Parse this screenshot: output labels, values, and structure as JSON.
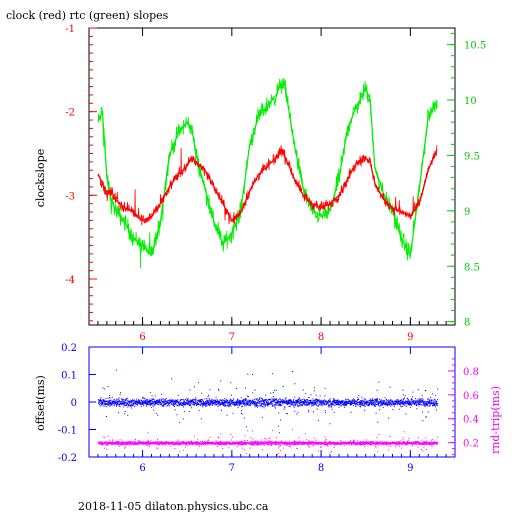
{
  "chart_data": [
    {
      "type": "line",
      "title": "clock (red) rtc (green) slopes",
      "ylabel": "clockslope",
      "xlim": [
        5.4,
        9.5
      ],
      "ylim": [
        -4.55,
        -1.0
      ],
      "y2lim": [
        7.97,
        10.65
      ],
      "x_ticks": [
        "6",
        "7",
        "8",
        "9"
      ],
      "y_ticks": [
        "-1",
        "-2",
        "-3",
        "-4"
      ],
      "y2_ticks": [
        "10.5",
        "10",
        "9.5",
        "9",
        "8.5",
        "8"
      ],
      "colors": {
        "frame": "#000000",
        "clock": "#ff0000",
        "rtc": "#00ee00"
      },
      "series": [
        {
          "name": "clock",
          "axis": "left",
          "x": [
            5.5,
            5.55,
            5.6,
            5.65,
            5.7,
            5.8,
            5.9,
            6.0,
            6.1,
            6.2,
            6.3,
            6.4,
            6.5,
            6.55,
            6.6,
            6.7,
            6.8,
            6.9,
            7.0,
            7.1,
            7.2,
            7.3,
            7.4,
            7.5,
            7.55,
            7.6,
            7.7,
            7.8,
            7.9,
            8.0,
            8.1,
            8.2,
            8.3,
            8.4,
            8.5,
            8.55,
            8.6,
            8.7,
            8.8,
            8.9,
            9.0,
            9.1,
            9.2,
            9.3
          ],
          "values": [
            -2.75,
            -2.85,
            -3.0,
            -2.95,
            -3.05,
            -3.15,
            -3.2,
            -3.3,
            -3.25,
            -3.1,
            -2.9,
            -2.75,
            -2.65,
            -2.55,
            -2.6,
            -2.7,
            -2.9,
            -3.1,
            -3.3,
            -3.2,
            -2.95,
            -2.75,
            -2.65,
            -2.55,
            -2.45,
            -2.55,
            -2.8,
            -3.0,
            -3.1,
            -3.15,
            -3.1,
            -3.0,
            -2.8,
            -2.6,
            -2.55,
            -2.6,
            -2.85,
            -3.05,
            -3.15,
            -3.2,
            -3.25,
            -3.1,
            -2.7,
            -2.45
          ]
        },
        {
          "name": "rtc",
          "axis": "right",
          "x": [
            5.5,
            5.55,
            5.6,
            5.65,
            5.7,
            5.8,
            5.9,
            6.0,
            6.1,
            6.2,
            6.3,
            6.4,
            6.5,
            6.55,
            6.6,
            6.7,
            6.8,
            6.9,
            7.0,
            7.1,
            7.2,
            7.3,
            7.4,
            7.5,
            7.55,
            7.6,
            7.7,
            7.8,
            7.9,
            8.0,
            8.1,
            8.2,
            8.3,
            8.4,
            8.5,
            8.55,
            8.6,
            8.7,
            8.8,
            8.9,
            9.0,
            9.1,
            9.2,
            9.3
          ],
          "values": [
            9.8,
            9.9,
            9.3,
            9.1,
            9.0,
            8.9,
            8.75,
            8.7,
            8.6,
            8.9,
            9.5,
            9.7,
            9.8,
            9.75,
            9.5,
            9.2,
            8.9,
            8.7,
            8.8,
            9.0,
            9.6,
            9.85,
            9.95,
            10.05,
            10.15,
            10.1,
            9.6,
            9.2,
            9.0,
            8.95,
            9.0,
            9.3,
            9.75,
            9.95,
            10.1,
            10.0,
            9.4,
            9.15,
            9.0,
            8.75,
            8.6,
            9.2,
            9.85,
            10.0
          ]
        }
      ]
    },
    {
      "type": "scatter",
      "xlim": [
        5.4,
        9.5
      ],
      "ylim": [
        -0.2,
        0.2
      ],
      "y2lim": [
        0.08,
        1.0
      ],
      "ylabel": "offset(ms)",
      "y2label": "rnd-trip(ms)",
      "x_ticks": [
        "6",
        "7",
        "8",
        "9"
      ],
      "y_ticks": [
        "0.2",
        "0.1",
        "0",
        "-0.1",
        "-0.2"
      ],
      "y2_ticks": [
        "0.8",
        "0.6",
        "0.4",
        "0.2"
      ],
      "colors": {
        "offset": "#0000ff",
        "rndtrip": "#ff00ff"
      },
      "series": [
        {
          "name": "offset",
          "axis": "left",
          "x_range": [
            5.5,
            9.3
          ],
          "center": 0.0,
          "spread": 0.02
        },
        {
          "name": "rnd-trip",
          "axis": "right",
          "x_range": [
            5.5,
            9.3
          ],
          "center": 0.2,
          "spread": 0.02
        }
      ]
    }
  ],
  "footer": "2018-11-05  dilaton.physics.ubc.ca"
}
